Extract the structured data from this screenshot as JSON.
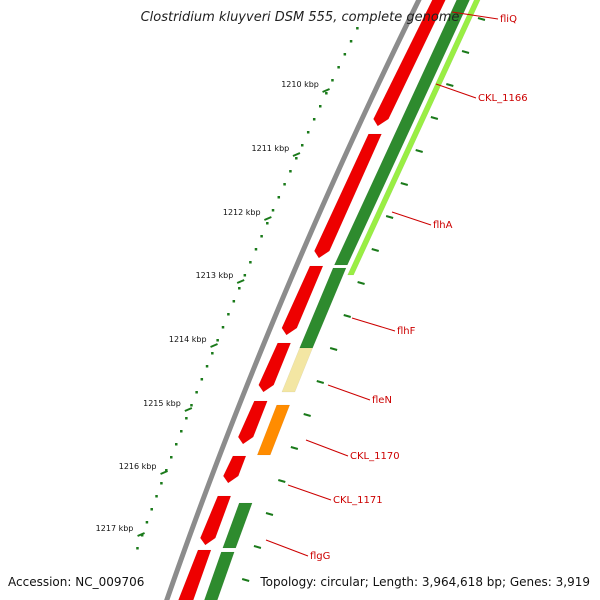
{
  "title": "Clostridium kluyveri DSM 555, complete genome",
  "accession": "Accession: NC_009706",
  "topology": "Topology: circular; Length: 3,964,618 bp; Genes: 3,919",
  "scale_labels": [
    {
      "name": "tick-1210",
      "text": "1210 kbp"
    },
    {
      "name": "tick-1211",
      "text": "1211 kbp"
    },
    {
      "name": "tick-1212",
      "text": "1212 kbp"
    },
    {
      "name": "tick-1213",
      "text": "1213 kbp"
    },
    {
      "name": "tick-1214",
      "text": "1214 kbp"
    },
    {
      "name": "tick-1215",
      "text": "1215 kbp"
    },
    {
      "name": "tick-1216",
      "text": "1216 kbp"
    },
    {
      "name": "tick-1217",
      "text": "1217 kbp"
    }
  ],
  "gene_labels": [
    {
      "name": "gene-fliQ",
      "text": "fliQ"
    },
    {
      "name": "gene-CKL_1166",
      "text": "CKL_1166"
    },
    {
      "name": "gene-flhA",
      "text": "flhA"
    },
    {
      "name": "gene-flhF",
      "text": "flhF"
    },
    {
      "name": "gene-fleN",
      "text": "fleN"
    },
    {
      "name": "gene-CKL_1170",
      "text": "CKL_1170"
    },
    {
      "name": "gene-CKL_1171",
      "text": "CKL_1171"
    },
    {
      "name": "gene-flgG",
      "text": "flgG"
    }
  ],
  "colors": {
    "backbone": "#8c8c8c",
    "cds": "#ee0000",
    "dark_green": "#2e8b2e",
    "light_green": "#99ee44",
    "pale_yellow": "#f3e6a3",
    "orange": "#ff8c00",
    "label_red": "#cc0000",
    "tick_green": "#1a7a1a"
  }
}
